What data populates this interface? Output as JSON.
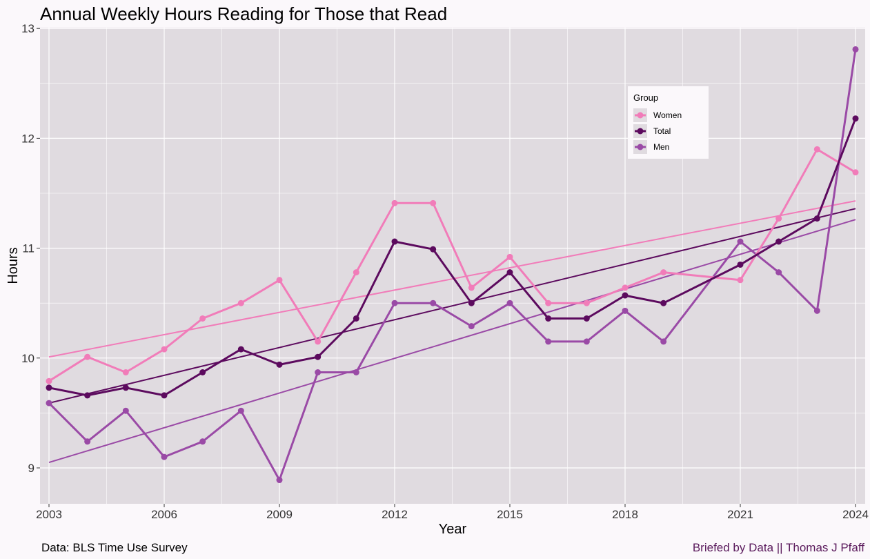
{
  "chart_data": {
    "type": "line",
    "title": "Annual Weekly Hours Reading for Those that Read",
    "xlabel": "Year",
    "ylabel": "Hours",
    "xlim": [
      2003,
      2024
    ],
    "ylim": [
      8.7,
      13.0
    ],
    "x_ticks": [
      2003,
      2006,
      2009,
      2012,
      2015,
      2018,
      2021,
      2024
    ],
    "y_ticks": [
      9,
      10,
      11,
      12,
      13
    ],
    "grid": true,
    "legend": {
      "title": "Group",
      "placement": "top-right-inside"
    },
    "trend_lines": true,
    "series": [
      {
        "name": "Women",
        "color": "#f17cb9",
        "x": [
          2003,
          2004,
          2005,
          2006,
          2007,
          2008,
          2009,
          2010,
          2011,
          2012,
          2013,
          2014,
          2015,
          2016,
          2017,
          2018,
          2019,
          2021,
          2022,
          2023,
          2024
        ],
        "values": [
          9.79,
          10.01,
          9.87,
          10.08,
          10.36,
          10.5,
          10.71,
          10.15,
          10.78,
          11.41,
          11.41,
          10.64,
          10.92,
          10.5,
          10.5,
          10.64,
          10.78,
          10.71,
          11.27,
          11.9,
          11.69
        ],
        "trend": [
          10.01,
          11.43
        ]
      },
      {
        "name": "Total",
        "color": "#5c0a5e",
        "x": [
          2003,
          2004,
          2005,
          2006,
          2007,
          2008,
          2009,
          2010,
          2011,
          2012,
          2013,
          2014,
          2015,
          2016,
          2017,
          2018,
          2019,
          2021,
          2022,
          2023,
          2024
        ],
        "values": [
          9.73,
          9.66,
          9.73,
          9.66,
          9.87,
          10.08,
          9.94,
          10.01,
          10.36,
          11.06,
          10.99,
          10.5,
          10.78,
          10.36,
          10.36,
          10.57,
          10.5,
          10.85,
          11.06,
          11.27,
          12.18
        ],
        "trend": [
          9.59,
          11.36
        ]
      },
      {
        "name": "Men",
        "color": "#9a4aa6",
        "x": [
          2003,
          2004,
          2005,
          2006,
          2007,
          2008,
          2009,
          2010,
          2011,
          2012,
          2013,
          2014,
          2015,
          2016,
          2017,
          2018,
          2019,
          2021,
          2022,
          2023,
          2024
        ],
        "values": [
          9.59,
          9.24,
          9.52,
          9.1,
          9.24,
          9.52,
          8.89,
          9.87,
          9.87,
          10.5,
          10.5,
          10.29,
          10.5,
          10.15,
          10.15,
          10.43,
          10.15,
          11.06,
          10.78,
          10.43,
          12.81
        ],
        "trend": [
          9.05,
          11.26
        ]
      }
    ]
  },
  "caption": {
    "left": "Data: BLS Time Use Survey",
    "right": "Briefed by Data || Thomas J Pfaff"
  }
}
